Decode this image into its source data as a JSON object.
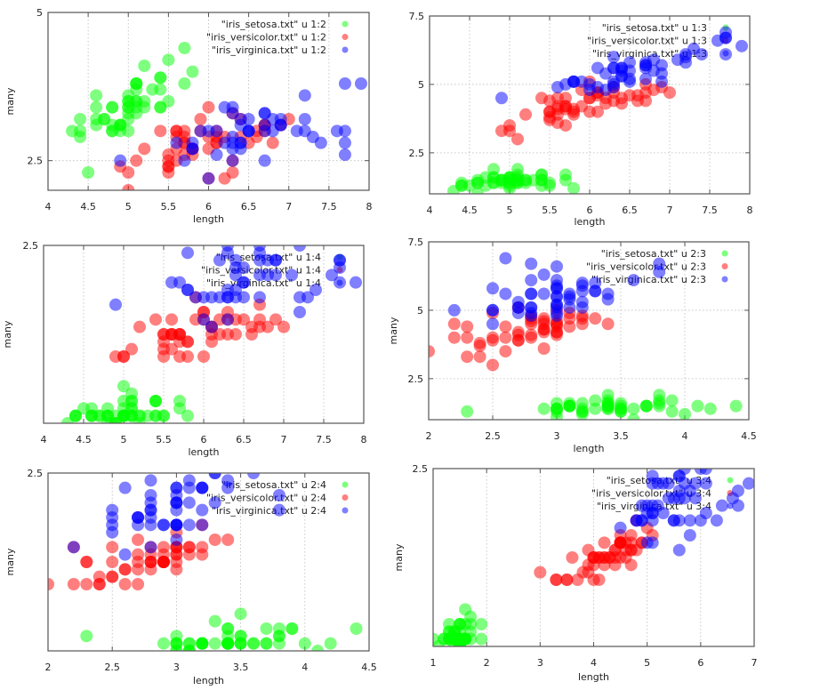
{
  "datasets": {
    "setosa": [
      [
        5.1,
        3.5,
        1.4,
        0.2
      ],
      [
        4.9,
        3.0,
        1.4,
        0.2
      ],
      [
        4.7,
        3.2,
        1.3,
        0.2
      ],
      [
        4.6,
        3.1,
        1.5,
        0.2
      ],
      [
        5.0,
        3.6,
        1.4,
        0.2
      ],
      [
        5.4,
        3.9,
        1.7,
        0.4
      ],
      [
        4.6,
        3.4,
        1.4,
        0.3
      ],
      [
        5.0,
        3.4,
        1.5,
        0.2
      ],
      [
        4.4,
        2.9,
        1.4,
        0.2
      ],
      [
        4.9,
        3.1,
        1.5,
        0.1
      ],
      [
        5.4,
        3.7,
        1.5,
        0.2
      ],
      [
        4.8,
        3.4,
        1.6,
        0.2
      ],
      [
        4.8,
        3.0,
        1.4,
        0.1
      ],
      [
        4.3,
        3.0,
        1.1,
        0.1
      ],
      [
        5.8,
        4.0,
        1.2,
        0.2
      ],
      [
        5.7,
        4.4,
        1.5,
        0.4
      ],
      [
        5.4,
        3.9,
        1.3,
        0.4
      ],
      [
        5.1,
        3.5,
        1.4,
        0.3
      ],
      [
        5.7,
        3.8,
        1.7,
        0.3
      ],
      [
        5.1,
        3.8,
        1.5,
        0.3
      ],
      [
        5.4,
        3.4,
        1.7,
        0.2
      ],
      [
        5.1,
        3.7,
        1.5,
        0.4
      ],
      [
        4.6,
        3.6,
        1.0,
        0.2
      ],
      [
        5.1,
        3.3,
        1.7,
        0.5
      ],
      [
        4.8,
        3.4,
        1.9,
        0.2
      ],
      [
        5.0,
        3.0,
        1.6,
        0.2
      ],
      [
        5.0,
        3.4,
        1.6,
        0.4
      ],
      [
        5.2,
        3.5,
        1.5,
        0.2
      ],
      [
        5.2,
        3.4,
        1.4,
        0.2
      ],
      [
        4.7,
        3.2,
        1.6,
        0.2
      ],
      [
        4.8,
        3.1,
        1.6,
        0.2
      ],
      [
        5.4,
        3.4,
        1.5,
        0.4
      ],
      [
        5.2,
        4.1,
        1.5,
        0.1
      ],
      [
        5.5,
        4.2,
        1.4,
        0.2
      ],
      [
        4.9,
        3.1,
        1.5,
        0.1
      ],
      [
        5.0,
        3.2,
        1.2,
        0.2
      ],
      [
        5.5,
        3.5,
        1.3,
        0.2
      ],
      [
        4.9,
        3.1,
        1.5,
        0.1
      ],
      [
        4.4,
        3.0,
        1.3,
        0.2
      ],
      [
        5.1,
        3.4,
        1.5,
        0.2
      ],
      [
        5.0,
        3.5,
        1.3,
        0.3
      ],
      [
        4.5,
        2.3,
        1.3,
        0.3
      ],
      [
        4.4,
        3.2,
        1.3,
        0.2
      ],
      [
        5.0,
        3.5,
        1.6,
        0.6
      ],
      [
        5.1,
        3.8,
        1.9,
        0.4
      ],
      [
        4.8,
        3.0,
        1.4,
        0.3
      ],
      [
        5.1,
        3.8,
        1.6,
        0.2
      ],
      [
        4.6,
        3.2,
        1.4,
        0.2
      ],
      [
        5.3,
        3.7,
        1.5,
        0.2
      ],
      [
        5.0,
        3.3,
        1.4,
        0.2
      ]
    ],
    "versicolor": [
      [
        7.0,
        3.2,
        4.7,
        1.4
      ],
      [
        6.4,
        3.2,
        4.5,
        1.5
      ],
      [
        6.9,
        3.1,
        4.9,
        1.5
      ],
      [
        5.5,
        2.3,
        4.0,
        1.3
      ],
      [
        6.5,
        2.8,
        4.6,
        1.5
      ],
      [
        5.7,
        2.8,
        4.5,
        1.3
      ],
      [
        6.3,
        3.3,
        4.7,
        1.6
      ],
      [
        4.9,
        2.4,
        3.3,
        1.0
      ],
      [
        6.6,
        2.9,
        4.6,
        1.3
      ],
      [
        5.2,
        2.7,
        3.9,
        1.4
      ],
      [
        5.0,
        2.0,
        3.5,
        1.0
      ],
      [
        5.9,
        3.0,
        4.2,
        1.5
      ],
      [
        6.0,
        2.2,
        4.0,
        1.0
      ],
      [
        6.1,
        2.9,
        4.7,
        1.4
      ],
      [
        5.6,
        2.9,
        3.6,
        1.3
      ],
      [
        6.7,
        3.1,
        4.4,
        1.4
      ],
      [
        5.6,
        3.0,
        4.5,
        1.5
      ],
      [
        5.8,
        2.7,
        4.1,
        1.0
      ],
      [
        6.2,
        2.2,
        4.5,
        1.5
      ],
      [
        5.6,
        2.5,
        3.9,
        1.1
      ],
      [
        5.9,
        3.2,
        4.8,
        1.8
      ],
      [
        6.1,
        2.8,
        4.0,
        1.3
      ],
      [
        6.3,
        2.5,
        4.9,
        1.5
      ],
      [
        6.1,
        2.8,
        4.7,
        1.2
      ],
      [
        6.4,
        2.9,
        4.3,
        1.3
      ],
      [
        6.6,
        3.0,
        4.4,
        1.4
      ],
      [
        6.8,
        2.8,
        4.8,
        1.4
      ],
      [
        6.7,
        3.0,
        5.0,
        1.7
      ],
      [
        6.0,
        2.9,
        4.5,
        1.5
      ],
      [
        5.7,
        2.6,
        3.5,
        1.0
      ],
      [
        5.5,
        2.4,
        3.8,
        1.1
      ],
      [
        5.5,
        2.4,
        3.7,
        1.0
      ],
      [
        5.8,
        2.7,
        3.9,
        1.2
      ],
      [
        6.0,
        2.7,
        5.1,
        1.6
      ],
      [
        5.4,
        3.0,
        4.5,
        1.5
      ],
      [
        6.0,
        3.4,
        4.5,
        1.6
      ],
      [
        6.7,
        3.1,
        4.7,
        1.5
      ],
      [
        6.3,
        2.3,
        4.4,
        1.3
      ],
      [
        5.6,
        3.0,
        4.1,
        1.3
      ],
      [
        5.5,
        2.5,
        4.0,
        1.3
      ],
      [
        5.5,
        2.6,
        4.4,
        1.2
      ],
      [
        6.1,
        3.0,
        4.6,
        1.4
      ],
      [
        5.8,
        2.6,
        4.0,
        1.2
      ],
      [
        5.0,
        2.3,
        3.3,
        1.0
      ],
      [
        5.6,
        2.7,
        4.2,
        1.3
      ],
      [
        5.7,
        3.0,
        4.2,
        1.2
      ],
      [
        5.7,
        2.9,
        4.2,
        1.3
      ],
      [
        6.2,
        2.9,
        4.3,
        1.3
      ],
      [
        5.1,
        2.5,
        3.0,
        1.1
      ],
      [
        5.7,
        2.8,
        4.1,
        1.3
      ]
    ],
    "virginica": [
      [
        6.3,
        3.3,
        6.0,
        2.5
      ],
      [
        5.8,
        2.7,
        5.1,
        1.9
      ],
      [
        7.1,
        3.0,
        5.9,
        2.1
      ],
      [
        6.3,
        2.9,
        5.6,
        1.8
      ],
      [
        6.5,
        3.0,
        5.8,
        2.2
      ],
      [
        7.6,
        3.0,
        6.6,
        2.1
      ],
      [
        4.9,
        2.5,
        4.5,
        1.7
      ],
      [
        7.3,
        2.9,
        6.3,
        1.8
      ],
      [
        6.7,
        2.5,
        5.8,
        1.8
      ],
      [
        7.2,
        3.6,
        6.1,
        2.5
      ],
      [
        6.5,
        3.2,
        5.1,
        2.0
      ],
      [
        6.4,
        2.7,
        5.3,
        1.9
      ],
      [
        6.8,
        3.0,
        5.5,
        2.1
      ],
      [
        5.7,
        2.5,
        5.0,
        2.0
      ],
      [
        5.8,
        2.8,
        5.1,
        2.4
      ],
      [
        6.4,
        3.2,
        5.3,
        2.3
      ],
      [
        6.5,
        3.0,
        5.5,
        1.8
      ],
      [
        7.7,
        3.8,
        6.7,
        2.2
      ],
      [
        7.7,
        2.6,
        6.9,
        2.3
      ],
      [
        6.0,
        2.2,
        5.0,
        1.5
      ],
      [
        6.9,
        3.2,
        5.7,
        2.3
      ],
      [
        5.6,
        2.8,
        4.9,
        2.0
      ],
      [
        7.7,
        2.8,
        6.7,
        2.0
      ],
      [
        6.3,
        2.7,
        4.9,
        1.8
      ],
      [
        6.7,
        3.3,
        5.7,
        2.1
      ],
      [
        7.2,
        3.2,
        6.0,
        1.8
      ],
      [
        6.2,
        2.8,
        4.8,
        1.8
      ],
      [
        6.1,
        3.0,
        4.9,
        1.8
      ],
      [
        6.4,
        2.8,
        5.6,
        2.1
      ],
      [
        7.2,
        3.0,
        5.8,
        1.6
      ],
      [
        7.4,
        2.8,
        6.1,
        1.9
      ],
      [
        7.9,
        3.8,
        6.4,
        2.0
      ],
      [
        6.4,
        2.8,
        5.6,
        2.2
      ],
      [
        6.3,
        2.8,
        5.1,
        1.5
      ],
      [
        6.1,
        2.6,
        5.6,
        1.4
      ],
      [
        7.7,
        3.0,
        6.1,
        2.3
      ],
      [
        6.3,
        3.4,
        5.6,
        2.4
      ],
      [
        6.4,
        3.1,
        5.5,
        1.8
      ],
      [
        6.0,
        3.0,
        4.8,
        1.8
      ],
      [
        6.9,
        3.1,
        5.4,
        2.1
      ],
      [
        6.7,
        3.1,
        5.6,
        2.4
      ],
      [
        6.9,
        3.1,
        5.1,
        2.3
      ],
      [
        5.8,
        2.7,
        5.1,
        1.9
      ],
      [
        6.8,
        3.2,
        5.9,
        2.3
      ],
      [
        6.7,
        3.3,
        5.7,
        2.5
      ],
      [
        6.7,
        3.0,
        5.2,
        2.3
      ],
      [
        6.3,
        2.5,
        5.0,
        1.9
      ],
      [
        6.5,
        3.0,
        5.2,
        2.0
      ],
      [
        6.2,
        3.4,
        5.4,
        2.3
      ],
      [
        5.9,
        3.0,
        5.1,
        1.8
      ]
    ]
  },
  "colors": {
    "setosa": "#00ff00",
    "versicolor": "#ff0000",
    "virginica": "#0000ff"
  },
  "chart_data": [
    {
      "type": "scatter",
      "xlabel": "length",
      "ylabel": "many",
      "xlim": [
        4,
        8
      ],
      "ylim": [
        2,
        5
      ],
      "grid": true,
      "legend": "top-right",
      "xticks": [
        4,
        4.5,
        5,
        5.5,
        6,
        6.5,
        7,
        7.5,
        8
      ],
      "yticks": [
        2.5,
        5
      ],
      "series": [
        {
          "name": "\"iris_setosa.txt\" u 1:2",
          "dataset": "setosa",
          "columns": [
            1,
            2
          ]
        },
        {
          "name": "\"iris_versicolor.txt\" u 1:2",
          "dataset": "versicolor",
          "columns": [
            1,
            2
          ]
        },
        {
          "name": "\"iris_virginica.txt\" u 1:2",
          "dataset": "virginica",
          "columns": [
            1,
            2
          ]
        }
      ]
    },
    {
      "type": "scatter",
      "xlabel": "length",
      "ylabel": "",
      "xlim": [
        4,
        8
      ],
      "ylim": [
        1,
        7.5
      ],
      "grid": true,
      "legend": "top-right",
      "xticks": [
        4,
        4.5,
        5,
        5.5,
        6,
        6.5,
        7,
        7.5,
        8
      ],
      "yticks": [
        2.5,
        5,
        7.5
      ],
      "series": [
        {
          "name": "\"iris_setosa.txt\" u 1:3",
          "dataset": "setosa",
          "columns": [
            1,
            3
          ]
        },
        {
          "name": "\"iris_versicolor.txt\" u 1:3",
          "dataset": "versicolor",
          "columns": [
            1,
            3
          ]
        },
        {
          "name": "\"iris_virginica.txt\" u 1:3",
          "dataset": "virginica",
          "columns": [
            1,
            3
          ]
        }
      ]
    },
    {
      "type": "scatter",
      "xlabel": "length",
      "ylabel": "many",
      "xlim": [
        4,
        8
      ],
      "ylim": [
        0.1,
        2.5
      ],
      "grid": true,
      "legend": "top-right",
      "xticks": [
        4,
        4.5,
        5,
        5.5,
        6,
        6.5,
        7,
        7.5,
        8
      ],
      "yticks": [
        2.5
      ],
      "series": [
        {
          "name": "\"iris_setosa.txt\" u 1:4",
          "dataset": "setosa",
          "columns": [
            1,
            4
          ]
        },
        {
          "name": "\"iris_versicolor.txt\" u 1:4",
          "dataset": "versicolor",
          "columns": [
            1,
            4
          ]
        },
        {
          "name": "\"iris_virginica.txt\" u 1:4",
          "dataset": "virginica",
          "columns": [
            1,
            4
          ]
        }
      ]
    },
    {
      "type": "scatter",
      "xlabel": "length",
      "ylabel": "many",
      "xlim": [
        2,
        4.5
      ],
      "ylim": [
        1,
        7.5
      ],
      "grid": true,
      "legend": "top-right",
      "xticks": [
        2,
        2.5,
        3,
        3.5,
        4,
        4.5
      ],
      "yticks": [
        2.5,
        5,
        7.5
      ],
      "series": [
        {
          "name": "\"iris_setosa.txt\" u 2:3",
          "dataset": "setosa",
          "columns": [
            2,
            3
          ]
        },
        {
          "name": "\"iris_versicolor.txt\" u 2:3",
          "dataset": "versicolor",
          "columns": [
            2,
            3
          ]
        },
        {
          "name": "\"iris_virginica.txt\" u 2:3",
          "dataset": "virginica",
          "columns": [
            2,
            3
          ]
        }
      ]
    },
    {
      "type": "scatter",
      "xlabel": "length",
      "ylabel": "many",
      "xlim": [
        2,
        4.5
      ],
      "ylim": [
        0.1,
        2.5
      ],
      "grid": true,
      "legend": "top-right",
      "xticks": [
        2,
        2.5,
        3,
        3.5,
        4,
        4.5
      ],
      "yticks": [
        2.5
      ],
      "series": [
        {
          "name": "\"iris_setosa.txt\" u 2:4",
          "dataset": "setosa",
          "columns": [
            2,
            4
          ]
        },
        {
          "name": "\"iris_versicolor.txt\" u 2:4",
          "dataset": "versicolor",
          "columns": [
            2,
            4
          ]
        },
        {
          "name": "\"iris_virginica.txt\" u 2:4",
          "dataset": "virginica",
          "columns": [
            2,
            4
          ]
        }
      ]
    },
    {
      "type": "scatter",
      "xlabel": "length",
      "ylabel": "many",
      "xlim": [
        1,
        7
      ],
      "ylim": [
        0.1,
        2.5
      ],
      "grid": true,
      "legend": "top-right",
      "xticks": [
        1,
        2,
        3,
        4,
        5,
        6,
        7
      ],
      "yticks": [
        2.5
      ],
      "series": [
        {
          "name": "\"iris_setosa.txt\" u 3:4",
          "dataset": "setosa",
          "columns": [
            3,
            4
          ]
        },
        {
          "name": "\"iris_versicolor.txt\" u 3:4",
          "dataset": "versicolor",
          "columns": [
            3,
            4
          ]
        },
        {
          "name": "\"iris_virginica.txt\" u 3:4",
          "dataset": "virginica",
          "columns": [
            3,
            4
          ]
        }
      ]
    }
  ]
}
